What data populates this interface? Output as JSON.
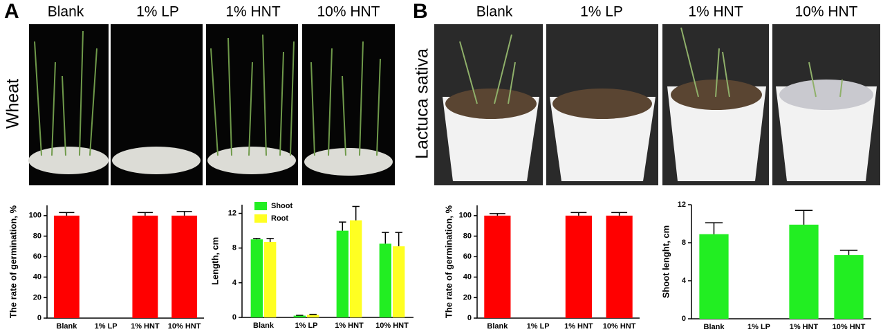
{
  "panels": [
    {
      "label": "A",
      "row_label": "Wheat",
      "columns": [
        "Blank",
        "1% LP",
        "1% HNT",
        "10% HNT"
      ]
    },
    {
      "label": "B",
      "row_label": "Lactuca sativa",
      "columns": [
        "Blank",
        "1% LP",
        "1% HNT",
        "10% HNT"
      ]
    }
  ],
  "chart_data": [
    {
      "type": "bar",
      "ylabel": "The rate of germination, %",
      "categories": [
        "Blank",
        "1% LP",
        "1% HNT",
        "10% HNT"
      ],
      "values": [
        100,
        0,
        100,
        100
      ],
      "errors": [
        3,
        null,
        3,
        4
      ],
      "color": "#ff0000",
      "ylim": [
        0,
        110
      ],
      "yticks": [
        0,
        20,
        40,
        60,
        80,
        100
      ]
    },
    {
      "type": "grouped_bar",
      "ylabel": "Length, cm",
      "categories": [
        "Blank",
        "1% LP",
        "1% HNT",
        "10% HNT"
      ],
      "series": [
        {
          "name": "Shoot",
          "color": "#22ee22",
          "values": [
            9.0,
            0.2,
            10.0,
            8.5
          ],
          "errors": [
            0.1,
            0.05,
            1.0,
            1.3
          ]
        },
        {
          "name": "Root",
          "color": "#ffff22",
          "values": [
            8.7,
            0.3,
            11.2,
            8.2
          ],
          "errors": [
            0.4,
            0.05,
            1.6,
            1.6
          ]
        }
      ],
      "ylim": [
        0,
        13
      ],
      "yticks": [
        0,
        4,
        8,
        12
      ],
      "legend": "upper left"
    },
    {
      "type": "bar",
      "ylabel": "The rate of germination, %",
      "categories": [
        "Blank",
        "1% LP",
        "1% HNT",
        "10% HNT"
      ],
      "values": [
        100,
        0,
        100,
        100
      ],
      "errors": [
        2,
        null,
        3,
        3
      ],
      "color": "#ff0000",
      "ylim": [
        0,
        110
      ],
      "yticks": [
        0,
        20,
        40,
        60,
        80,
        100
      ]
    },
    {
      "type": "bar",
      "ylabel": "Shoot lenght, cm",
      "categories": [
        "Blank",
        "1% LP",
        "1% HNT",
        "10% HNT"
      ],
      "values": [
        8.9,
        0,
        9.9,
        6.7
      ],
      "errors": [
        1.2,
        null,
        1.5,
        0.5
      ],
      "color": "#22ee22",
      "ylim": [
        0,
        12
      ],
      "yticks": [
        0,
        4,
        8,
        12
      ]
    }
  ]
}
